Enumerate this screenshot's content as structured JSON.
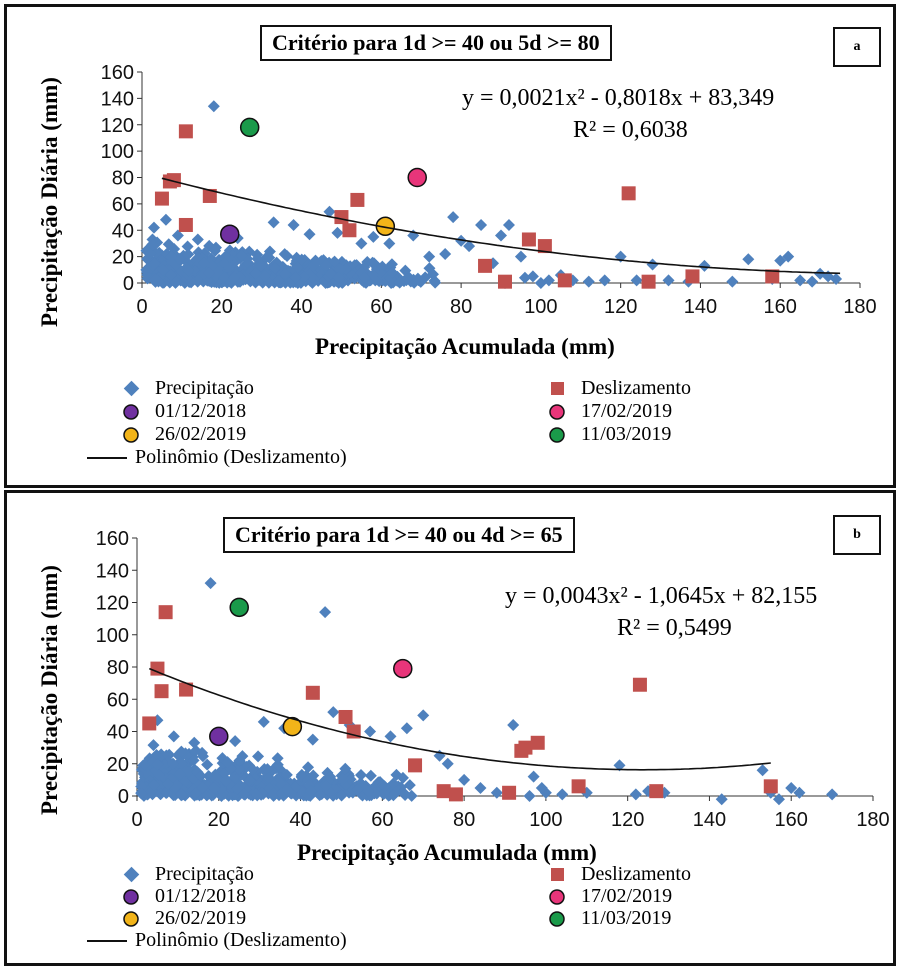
{
  "colors": {
    "precipitacao": "#4f81bd",
    "deslizamento": "#c0504d",
    "d20181201": "#7030a0",
    "d20190217": "#e8357a",
    "d20190226": "#f2b419",
    "d20190311": "#1a9a4a",
    "curve": "#111111"
  },
  "legend": {
    "precipitacao": "Precipitação",
    "deslizamento": "Deslizamento",
    "d1": "01/12/2018",
    "d2": "17/02/2019",
    "d3": "26/02/2019",
    "d4": "11/03/2019",
    "poly": "Polinômio (Deslizamento)"
  },
  "chart_data": [
    {
      "type": "scatter",
      "panel": "a",
      "title": "Critério para 1d >= 40 ou 5d >= 80",
      "equation": "y = 0,0021x² - 0,8018x + 83,349",
      "r2": "R² = 0,6038",
      "xlabel": "Precipitação Acumulada (mm)",
      "ylabel": "Precipitação Diária (mm)",
      "xlim": [
        0,
        180
      ],
      "ylim": [
        0,
        160
      ],
      "xticks": [
        0,
        20,
        40,
        60,
        80,
        100,
        120,
        140,
        160,
        180
      ],
      "yticks": [
        0,
        20,
        40,
        60,
        80,
        100,
        120,
        140,
        160
      ],
      "poly": {
        "a": 0.0021,
        "b": -0.8018,
        "c": 83.349,
        "xrange": [
          5,
          175
        ]
      },
      "series": [
        {
          "name": "Precipitação",
          "marker": "diamond",
          "cluster": {
            "xmax": 75,
            "ymax": 35,
            "count": 600
          },
          "points": [
            [
              18,
              134
            ],
            [
              6,
              48
            ],
            [
              3,
              42
            ],
            [
              9,
              36
            ],
            [
              14,
              33
            ],
            [
              24,
              34
            ],
            [
              33,
              46
            ],
            [
              38,
              44
            ],
            [
              42,
              37
            ],
            [
              47,
              54
            ],
            [
              49,
              38
            ],
            [
              55,
              30
            ],
            [
              58,
              35
            ],
            [
              62,
              30
            ],
            [
              68,
              36
            ],
            [
              72,
              20
            ],
            [
              76,
              22
            ],
            [
              78,
              50
            ],
            [
              80,
              32
            ],
            [
              82,
              28
            ],
            [
              85,
              44
            ],
            [
              88,
              15
            ],
            [
              90,
              36
            ],
            [
              92,
              44
            ],
            [
              95,
              20
            ],
            [
              98,
              5
            ],
            [
              102,
              2
            ],
            [
              105,
              6
            ],
            [
              108,
              2
            ],
            [
              112,
              1
            ],
            [
              116,
              2
            ],
            [
              120,
              20
            ],
            [
              124,
              2
            ],
            [
              128,
              14
            ],
            [
              132,
              2
            ],
            [
              137,
              1
            ],
            [
              141,
              13
            ],
            [
              148,
              1
            ],
            [
              152,
              18
            ],
            [
              158,
              3
            ],
            [
              160,
              17
            ],
            [
              162,
              20
            ],
            [
              165,
              2
            ],
            [
              168,
              1
            ],
            [
              170,
              7
            ],
            [
              172,
              5
            ],
            [
              174,
              3
            ],
            [
              91,
              0
            ],
            [
              96,
              4
            ],
            [
              100,
              0
            ]
          ]
        },
        {
          "name": "Deslizamento",
          "marker": "square",
          "points": [
            [
              5,
              64
            ],
            [
              7,
              77
            ],
            [
              8,
              78
            ],
            [
              11,
              44
            ],
            [
              11,
              115
            ],
            [
              17,
              66
            ],
            [
              50,
              50
            ],
            [
              52,
              40
            ],
            [
              54,
              63
            ],
            [
              86,
              13
            ],
            [
              91,
              1
            ],
            [
              97,
              33
            ],
            [
              101,
              28
            ],
            [
              106,
              2
            ],
            [
              122,
              68
            ],
            [
              127,
              1
            ],
            [
              138,
              5
            ],
            [
              158,
              5
            ]
          ]
        },
        {
          "name": "01/12/2018",
          "marker": "circle",
          "points": [
            [
              22,
              37
            ]
          ]
        },
        {
          "name": "17/02/2019",
          "marker": "circle",
          "points": [
            [
              69,
              80
            ]
          ]
        },
        {
          "name": "26/02/2019",
          "marker": "circle",
          "points": [
            [
              61,
              43
            ]
          ]
        },
        {
          "name": "11/03/2019",
          "marker": "circle",
          "points": [
            [
              27,
              118
            ]
          ]
        }
      ]
    },
    {
      "type": "scatter",
      "panel": "b",
      "title": "Critério para 1d >= 40 ou 4d >= 65",
      "equation": "y = 0,0043x² - 1,0645x + 82,155",
      "r2": "R² = 0,5499",
      "xlabel": "Precipitação Acumulada (mm)",
      "ylabel": "Precipitação Diária (mm)",
      "xlim": [
        0,
        180
      ],
      "ylim": [
        0,
        160
      ],
      "xticks": [
        0,
        20,
        40,
        60,
        80,
        100,
        120,
        140,
        160,
        180
      ],
      "yticks": [
        0,
        20,
        40,
        60,
        80,
        100,
        120,
        140,
        160
      ],
      "poly": {
        "a": 0.0043,
        "b": -1.0645,
        "c": 82.155,
        "xrange": [
          3,
          155
        ]
      },
      "series": [
        {
          "name": "Precipitação",
          "marker": "diamond",
          "cluster": {
            "xmax": 70,
            "ymax": 35,
            "count": 600
          },
          "points": [
            [
              18,
              132
            ],
            [
              46,
              114
            ],
            [
              5,
              47
            ],
            [
              9,
              37
            ],
            [
              14,
              33
            ],
            [
              24,
              34
            ],
            [
              31,
              46
            ],
            [
              36,
              42
            ],
            [
              43,
              35
            ],
            [
              48,
              52
            ],
            [
              52,
              44
            ],
            [
              57,
              40
            ],
            [
              62,
              37
            ],
            [
              66,
              42
            ],
            [
              70,
              50
            ],
            [
              74,
              25
            ],
            [
              76,
              20
            ],
            [
              80,
              10
            ],
            [
              84,
              5
            ],
            [
              88,
              2
            ],
            [
              92,
              44
            ],
            [
              95,
              30
            ],
            [
              97,
              12
            ],
            [
              100,
              2
            ],
            [
              104,
              1
            ],
            [
              110,
              2
            ],
            [
              118,
              19
            ],
            [
              122,
              1
            ],
            [
              125,
              3
            ],
            [
              129,
              2
            ],
            [
              143,
              -2
            ],
            [
              153,
              16
            ],
            [
              155,
              2
            ],
            [
              157,
              -2
            ],
            [
              160,
              5
            ],
            [
              162,
              2
            ],
            [
              170,
              1
            ],
            [
              96,
              0
            ],
            [
              99,
              5
            ]
          ]
        },
        {
          "name": "Deslizamento",
          "marker": "square",
          "points": [
            [
              3,
              45
            ],
            [
              5,
              79
            ],
            [
              6,
              65
            ],
            [
              7,
              114
            ],
            [
              12,
              66
            ],
            [
              43,
              64
            ],
            [
              51,
              49
            ],
            [
              53,
              40
            ],
            [
              68,
              19
            ],
            [
              75,
              3
            ],
            [
              78,
              1
            ],
            [
              91,
              2
            ],
            [
              94,
              28
            ],
            [
              95,
              30
            ],
            [
              98,
              33
            ],
            [
              108,
              6
            ],
            [
              123,
              69
            ],
            [
              127,
              3
            ],
            [
              155,
              6
            ]
          ]
        },
        {
          "name": "01/12/2018",
          "marker": "circle",
          "points": [
            [
              20,
              37
            ]
          ]
        },
        {
          "name": "17/02/2019",
          "marker": "circle",
          "points": [
            [
              65,
              79
            ]
          ]
        },
        {
          "name": "26/02/2019",
          "marker": "circle",
          "points": [
            [
              38,
              43
            ]
          ]
        },
        {
          "name": "11/03/2019",
          "marker": "circle",
          "points": [
            [
              25,
              117
            ]
          ]
        }
      ]
    }
  ]
}
